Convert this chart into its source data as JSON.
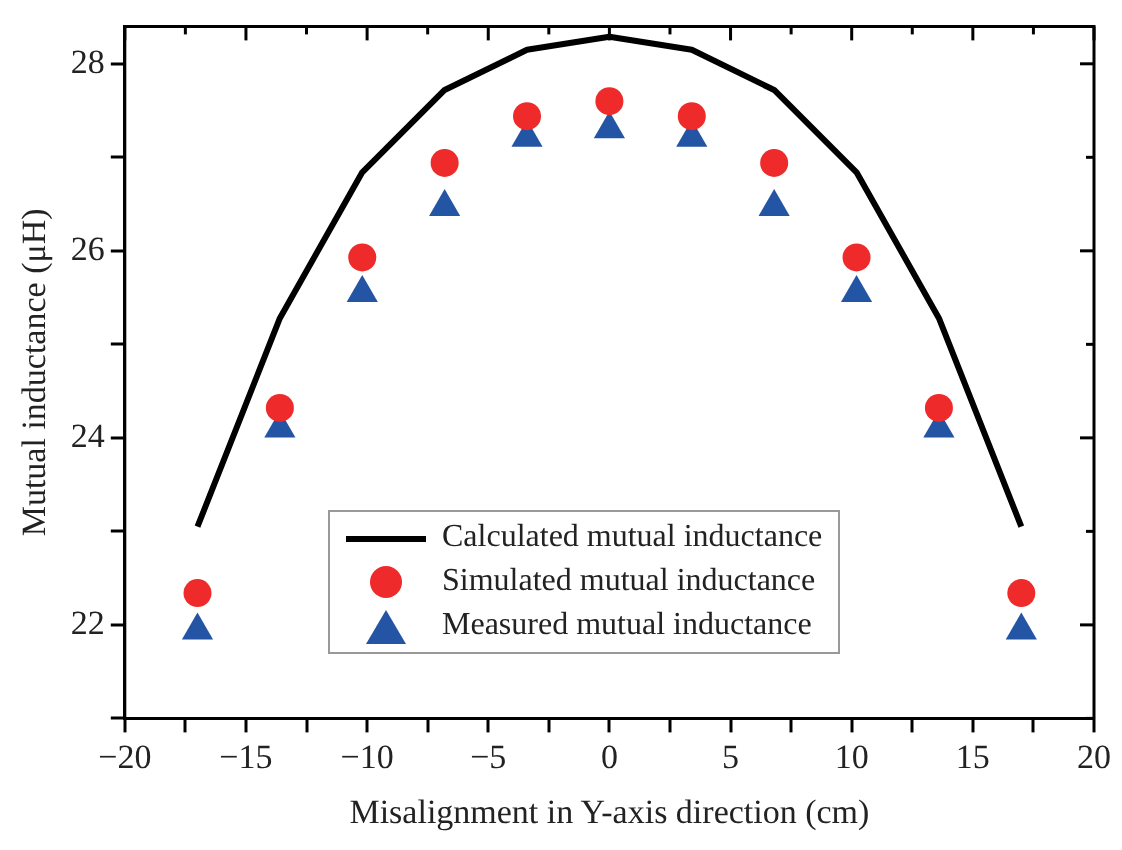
{
  "chart_data": {
    "type": "scatter",
    "xlabel": "Misalignment in Y-axis direction (cm)",
    "ylabel": "Mutual inductance (μH)",
    "xlim": [
      -20,
      20
    ],
    "ylim": [
      21,
      28.4
    ],
    "xticks": [
      -20,
      {
        "value": -17.5,
        "label": null
      },
      -15,
      {
        "value": -12.5,
        "label": null
      },
      -10,
      {
        "value": -7.5,
        "label": null
      },
      -5,
      {
        "value": -2.5,
        "label": null
      },
      0,
      {
        "value": 2.5,
        "label": null
      },
      5,
      {
        "value": 7.5,
        "label": null
      },
      10,
      {
        "value": 12.5,
        "label": null
      },
      15,
      {
        "value": 17.5,
        "label": null
      },
      20
    ],
    "yticks": [
      {
        "value": 21,
        "label": null
      },
      22,
      {
        "value": 23,
        "label": null
      },
      24,
      {
        "value": 25,
        "label": null
      },
      26,
      {
        "value": 27,
        "label": null
      },
      28
    ],
    "x": [
      -17,
      -13.6,
      -10.2,
      -6.8,
      -3.4,
      0,
      3.4,
      6.8,
      10.2,
      13.6,
      17
    ],
    "series": [
      {
        "name": "Calculated mutual inductance",
        "type": "line",
        "color": "#000000",
        "marker": "none",
        "line_style": "solid",
        "values": [
          23.05,
          25.28,
          26.84,
          27.72,
          28.15,
          28.29,
          28.15,
          27.72,
          26.84,
          25.28,
          23.05
        ]
      },
      {
        "name": "Simulated mutual inductance",
        "type": "scatter",
        "color": "#ee2a2a",
        "marker": "circle",
        "values": [
          22.34,
          24.32,
          25.93,
          26.94,
          27.44,
          27.6,
          27.44,
          26.94,
          25.93,
          24.32,
          22.34
        ]
      },
      {
        "name": "Measured mutual inductance",
        "type": "scatter",
        "color": "#2455a4",
        "marker": "triangle",
        "values": [
          21.94,
          24.1,
          25.55,
          26.47,
          27.21,
          27.3,
          27.21,
          26.47,
          25.55,
          24.1,
          21.94
        ]
      }
    ],
    "grid": false,
    "legend": "bottom"
  }
}
